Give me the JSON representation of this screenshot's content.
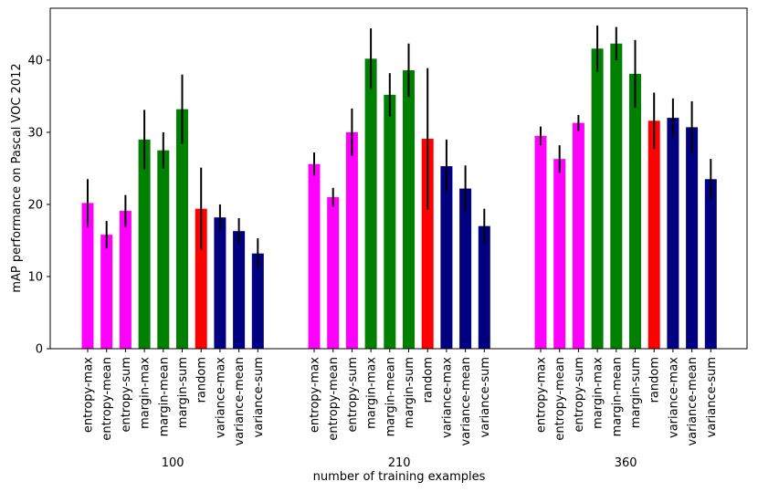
{
  "chart_data": {
    "type": "grouped_bar",
    "ylabel": "mAP performance on Pascal VOC 2012",
    "xlabel": "number of training examples",
    "categories": [
      "entropy-max",
      "entropy-mean",
      "entropy-sum",
      "margin-max",
      "margin-mean",
      "margin-sum",
      "random",
      "variance-max",
      "variance-mean",
      "variance-sum"
    ],
    "colors": [
      "#ff00ff",
      "#ff00ff",
      "#ff00ff",
      "#008000",
      "#008000",
      "#008000",
      "#ff0000",
      "#000080",
      "#000080",
      "#000080"
    ],
    "error_color": "#000000",
    "series": [
      {
        "name": "100",
        "values": [
          20.2,
          15.8,
          19.1,
          29.0,
          27.5,
          33.2,
          19.4,
          18.2,
          16.3,
          13.2
        ],
        "errors": [
          3.3,
          1.9,
          2.2,
          4.1,
          2.5,
          4.8,
          5.7,
          1.8,
          1.8,
          2.1
        ]
      },
      {
        "name": "210",
        "values": [
          25.6,
          21.0,
          30.0,
          40.2,
          35.2,
          38.6,
          29.1,
          25.3,
          22.2,
          17.0
        ],
        "errors": [
          1.6,
          1.3,
          3.3,
          4.2,
          3.0,
          3.7,
          9.8,
          3.7,
          3.2,
          2.4
        ]
      },
      {
        "name": "360",
        "values": [
          29.5,
          26.3,
          31.3,
          41.6,
          42.3,
          38.1,
          31.6,
          32.0,
          30.7,
          23.5
        ],
        "errors": [
          1.3,
          1.9,
          1.1,
          3.2,
          2.3,
          4.7,
          3.9,
          2.7,
          3.6,
          2.8
        ]
      }
    ],
    "ylim": [
      0,
      47.2
    ],
    "yticks": [
      0,
      10,
      20,
      30,
      40
    ]
  }
}
